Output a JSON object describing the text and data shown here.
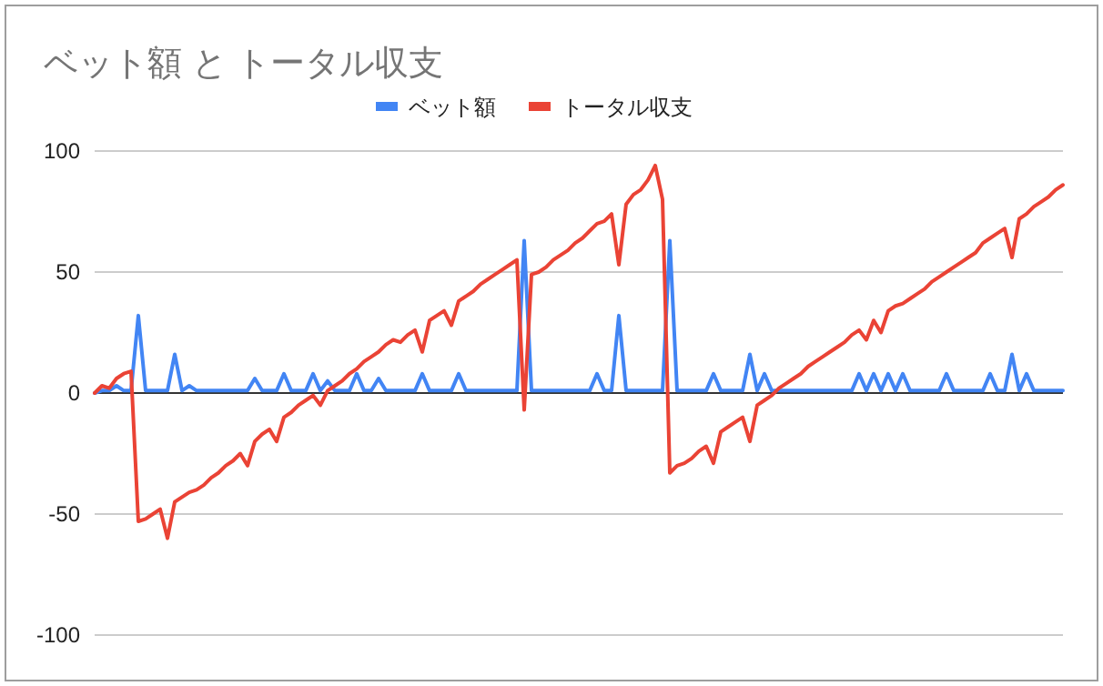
{
  "chart_data": {
    "type": "line",
    "title": "ベット額 と トータル収支",
    "categories": [
      null,
      null,
      null,
      null,
      null,
      null,
      null,
      null,
      null,
      null,
      null,
      null,
      null,
      null,
      null,
      null,
      null,
      null,
      null,
      null,
      null,
      null,
      null,
      null,
      null,
      null,
      null,
      null,
      null,
      null,
      null,
      null,
      null,
      null,
      null,
      null,
      null,
      null,
      null,
      null,
      null,
      null,
      null,
      null,
      null,
      null,
      null,
      null,
      null,
      null,
      null,
      null,
      null,
      null,
      null,
      null,
      null,
      null,
      null,
      null,
      null,
      null,
      null,
      null,
      null,
      null,
      null,
      null,
      null,
      null,
      null,
      null,
      null,
      null,
      null,
      null,
      null,
      null,
      null,
      null,
      null,
      null,
      null,
      null,
      null,
      null,
      null,
      null,
      null,
      null,
      null,
      null,
      null,
      null,
      null,
      null,
      null,
      null,
      null,
      null,
      null,
      null,
      null,
      null,
      null,
      null,
      null,
      null,
      null,
      null,
      null,
      null,
      null,
      null,
      null,
      null,
      null,
      null,
      null,
      null,
      null,
      null,
      null,
      null,
      null,
      null,
      null,
      null,
      null,
      null,
      null,
      null,
      null,
      null
    ],
    "series": [
      {
        "name": "ベット額",
        "color": "#4285f4",
        "values": [
          0,
          1,
          1,
          3,
          1,
          1,
          32,
          1,
          1,
          1,
          1,
          16,
          1,
          3,
          1,
          1,
          1,
          1,
          1,
          1,
          1,
          1,
          6,
          1,
          1,
          1,
          8,
          1,
          1,
          1,
          8,
          1,
          5,
          1,
          1,
          1,
          8,
          1,
          1,
          6,
          1,
          1,
          1,
          1,
          1,
          8,
          1,
          1,
          1,
          1,
          8,
          1,
          1,
          1,
          1,
          1,
          1,
          1,
          1,
          63,
          1,
          1,
          1,
          1,
          1,
          1,
          1,
          1,
          1,
          8,
          1,
          1,
          32,
          1,
          1,
          1,
          1,
          1,
          1,
          63,
          1,
          1,
          1,
          1,
          1,
          8,
          1,
          1,
          1,
          1,
          16,
          1,
          8,
          1,
          1,
          1,
          1,
          1,
          1,
          1,
          1,
          1,
          1,
          1,
          1,
          8,
          1,
          8,
          1,
          8,
          1,
          8,
          1,
          1,
          1,
          1,
          1,
          8,
          1,
          1,
          1,
          1,
          1,
          8,
          1,
          1,
          16,
          1,
          8,
          1,
          1,
          1,
          1,
          1
        ]
      },
      {
        "name": "トータル収支",
        "color": "#ea4335",
        "values": [
          0,
          3,
          2,
          6,
          8,
          9,
          -53,
          -52,
          -50,
          -48,
          -60,
          -45,
          -43,
          -41,
          -40,
          -38,
          -35,
          -33,
          -30,
          -28,
          -25,
          -30,
          -20,
          -17,
          -15,
          -20,
          -10,
          -8,
          -5,
          -3,
          -1,
          -5,
          1,
          3,
          5,
          8,
          10,
          13,
          15,
          17,
          20,
          22,
          21,
          24,
          26,
          17,
          30,
          32,
          34,
          28,
          38,
          40,
          42,
          45,
          47,
          49,
          51,
          53,
          55,
          -7,
          49,
          50,
          52,
          55,
          57,
          59,
          62,
          64,
          67,
          70,
          71,
          74,
          53,
          78,
          82,
          84,
          88,
          94,
          80,
          -33,
          -30,
          -29,
          -27,
          -24,
          -22,
          -29,
          -16,
          -14,
          -12,
          -10,
          -20,
          -5,
          -3,
          -1,
          2,
          4,
          6,
          8,
          11,
          13,
          15,
          17,
          19,
          21,
          24,
          26,
          22,
          30,
          25,
          34,
          36,
          37,
          39,
          41,
          43,
          46,
          48,
          50,
          52,
          54,
          56,
          58,
          62,
          64,
          66,
          68,
          56,
          72,
          74,
          77,
          79,
          81,
          84,
          86
        ]
      }
    ],
    "ylim": [
      -100,
      100
    ],
    "yticks": [
      -100,
      -50,
      0,
      50,
      100
    ],
    "grid": "y",
    "legend": "top",
    "tick_labels": "y",
    "marker": "none",
    "line_style": "solid"
  }
}
